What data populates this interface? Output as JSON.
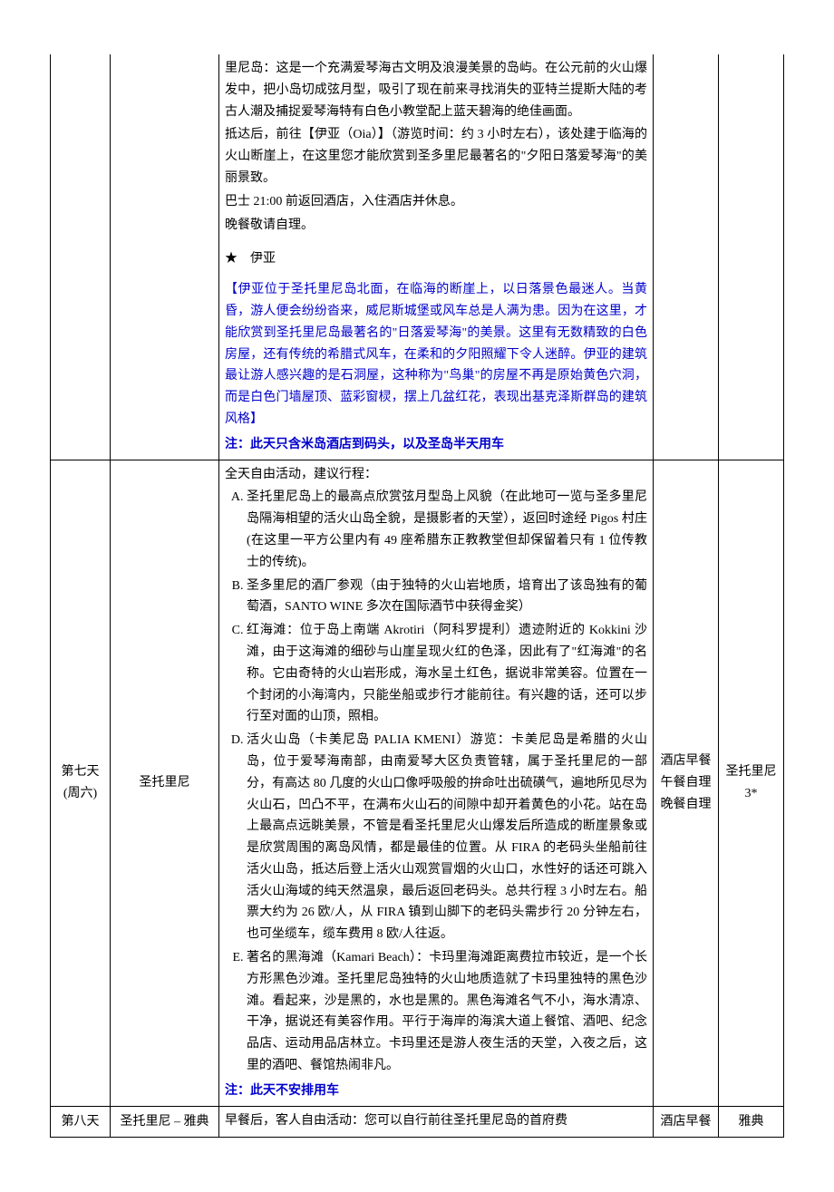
{
  "rows": {
    "r1": {
      "desc_p1": "里尼岛：这是一个充满爱琴海古文明及浪漫美景的岛屿。在公元前的火山爆发中，把小岛切成弦月型，吸引了现在前来寻找消失的亚特兰提斯大陆的考古人潮及捕捉爱琴海特有白色小教堂配上蓝天碧海的绝佳画面。",
      "desc_p2": "抵达后，前往【伊亚（Oia）】（游览时间：约 3 小时左右），该处建于临海的火山断崖上，在这里您才能欣赏到圣多里尼最著名的\"夕阳日落爱琴海\"的美丽景致。",
      "desc_p3": "巴士 21:00 前返回酒店，入住酒店并休息。",
      "desc_p4": "晚餐敬请自理。",
      "star_title": "★　伊亚",
      "blue_text": "【伊亚位于圣托里尼岛北面，在临海的断崖上，以日落景色最迷人。当黄昏，游人便会纷纷沓来，威尼斯城堡或风车总是人满为患。因为在这里，才能欣赏到圣托里尼岛最著名的\"日落爱琴海\"的美景。这里有无数精致的白色房屋，还有传统的希腊式风车，在柔和的夕阳照耀下令人迷醉。伊亚的建筑最让游人感兴趣的是石洞屋，这种称为\"鸟巢\"的房屋不再是原始黄色穴洞，而是白色门墙屋顶、蓝彩窗棂，摆上几盆红花，表现出基克泽斯群岛的建筑风格】",
      "note": "注：此天只含米岛酒店到码头，以及圣岛半天用车"
    },
    "r2": {
      "day_l1": "第七天",
      "day_l2": "(周六)",
      "place": "圣托里尼",
      "desc_intro": "全天自由活动，建议行程：",
      "li_a": "圣托里尼岛上的最高点欣赏弦月型岛上风貌（在此地可一览与圣多里尼岛隔海相望的活火山岛全貌，是摄影者的天堂），返回时途经 Pigos 村庄(在这里一平方公里内有 49 座希腊东正教教堂但却保留着只有 1 位传教士的传统)。",
      "li_b": "圣多里尼的酒厂参观（由于独特的火山岩地质，培育出了该岛独有的葡萄酒，SANTO WINE 多次在国际酒节中获得金奖）",
      "li_c": "红海滩：位于岛上南端 Akrotiri（阿科罗提利）遗迹附近的 Kokkini 沙滩，由于这海滩的细砂与山崖呈现火红的色泽，因此有了\"红海滩\"的名称。它由奇特的火山岩形成，海水呈土红色，据说非常美容。位置在一个封闭的小海湾内，只能坐船或步行才能前往。有兴趣的话，还可以步行至对面的山顶，照相。",
      "li_d": "活火山岛（卡美尼岛 PALIA KMENI）游览：卡美尼岛是希腊的火山岛，位于爱琴海南部，由南爱琴大区负责管辖，属于圣托里尼的一部分，有高达 80 几度的火山口像呼吸般的拚命吐出硫磺气，遍地所见尽为火山石，凹凸不平，在满布火山石的间隙中却开着黄色的小花。站在岛上最高点远眺美景，不管是看圣托里尼火山爆发后所造成的断崖景象或是欣赏周围的离岛风情，都是最佳的位置。从 FIRA 的老码头坐船前往活火山岛，抵达后登上活火山观赏冒烟的火山口，水性好的话还可跳入活火山海域的纯天然温泉，最后返回老码头。总共行程 3 小时左右。船票大约为 26 欧/人，从 FIRA 镇到山脚下的老码头需步行 20 分钟左右，也可坐缆车，缆车费用 8 欧/人往返。",
      "li_e": "著名的黑海滩（Kamari Beach）：卡玛里海滩距离费拉市较近，是一个长方形黑色沙滩。圣托里尼岛独特的火山地质造就了卡玛里独特的黑色沙滩。看起来，沙是黑的，水也是黑的。黑色海滩名气不小，海水清凉、干净，据说还有美容作用。平行于海岸的海滨大道上餐馆、酒吧、纪念品店、运动用品店林立。卡玛里还是游人夜生活的天堂，入夜之后，这里的酒吧、餐馆热闹非凡。",
      "note": "注：此天不安排用车",
      "meal_l1": "酒店早餐",
      "meal_l2": "午餐自理",
      "meal_l3": "晚餐自理",
      "hotel_l1": "圣托里尼",
      "hotel_l2": "3*"
    },
    "r3": {
      "day": "第八天",
      "place": "圣托里尼 – 雅典",
      "desc": "早餐后，客人自由活动：您可以自行前往圣托里尼岛的首府费",
      "meal": "酒店早餐",
      "hotel": "雅典"
    }
  }
}
